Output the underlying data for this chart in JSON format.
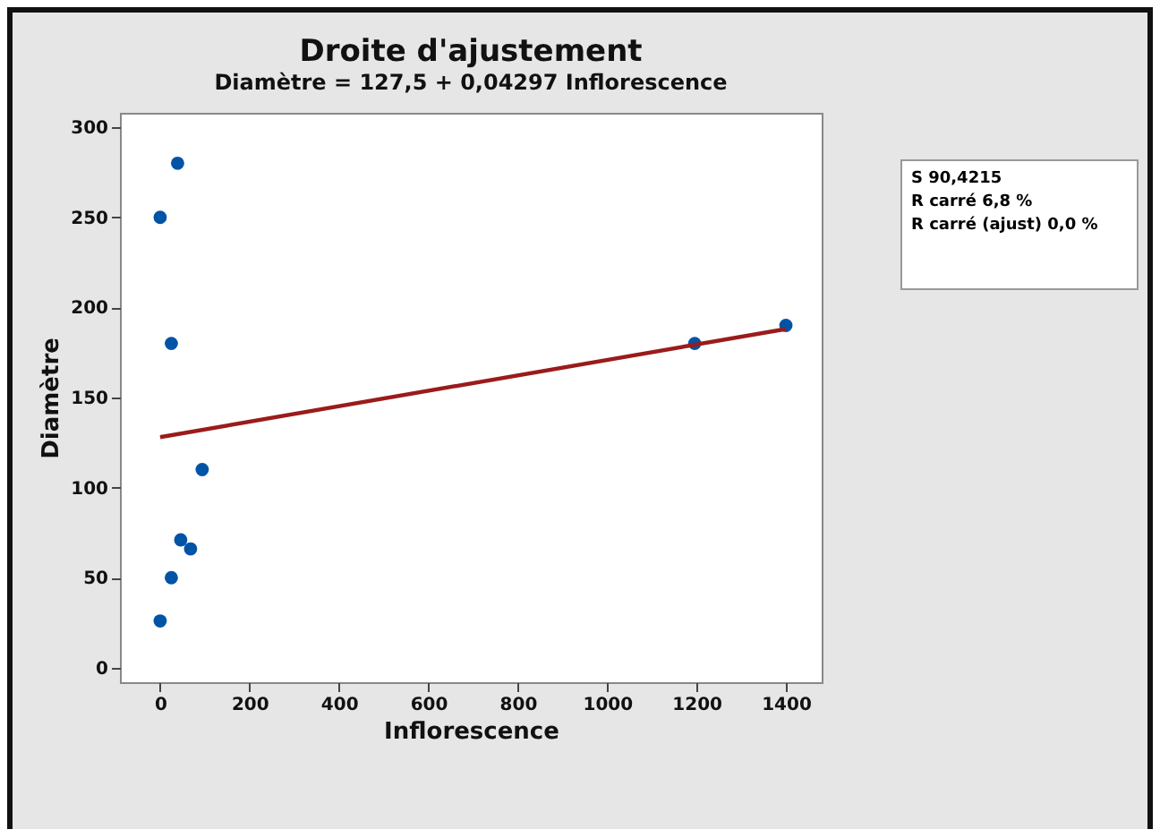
{
  "chart_data": {
    "type": "scatter",
    "title": "Droite d'ajustement",
    "subtitle": "Diamètre = 127,5 + 0,04297 Inflorescence",
    "xlabel": "Inflorescence",
    "ylabel": "Diamètre",
    "xlim": [
      -90,
      1480
    ],
    "ylim": [
      -8,
      308
    ],
    "xticks": [
      0,
      200,
      400,
      600,
      800,
      1000,
      1200,
      1400
    ],
    "yticks": [
      0,
      50,
      100,
      150,
      200,
      250,
      300
    ],
    "grid": false,
    "series": [
      {
        "marker": "circle",
        "color": "#0054a6",
        "x": [
          39,
          0,
          25,
          94,
          46,
          68,
          25,
          0,
          1196,
          1400
        ],
        "values": [
          280,
          250,
          180,
          110,
          71,
          66,
          50,
          26,
          180,
          190
        ]
      },
      {
        "type": "line",
        "color": "#9b1b1b",
        "marker": "none",
        "line_style": "solid",
        "x": [
          0,
          1400
        ],
        "values": [
          128,
          188
        ]
      }
    ],
    "annotations": [
      "S 90,4215",
      "R carré 6,8 %",
      "R carré (ajust) 0,0 %"
    ]
  }
}
